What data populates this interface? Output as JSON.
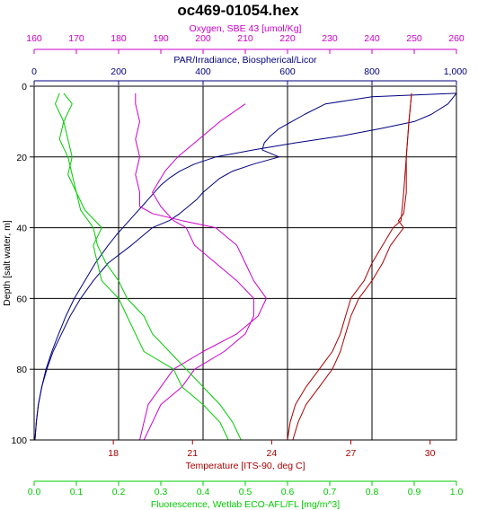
{
  "chart_data": {
    "type": "line",
    "title": "oc469-01054.hex",
    "y_axis": {
      "label": "Depth [salt water, m]",
      "range": [
        100,
        0
      ],
      "ticks": [
        0,
        20,
        40,
        60,
        80,
        100
      ],
      "color": "#000000"
    },
    "top_axes": [
      {
        "id": "oxygen",
        "label": "Oxygen, SBE 43 [umol/Kg]",
        "range": [
          160,
          260
        ],
        "ticks": [
          160,
          170,
          180,
          190,
          200,
          210,
          220,
          230,
          240,
          250,
          260
        ],
        "color": "#cc00cc"
      },
      {
        "id": "par",
        "label": "PAR/Irradiance, Biospherical/Licor",
        "range": [
          0,
          1000
        ],
        "ticks": [
          0,
          200,
          400,
          600,
          800
        ],
        "tick_labels": [
          "0",
          "200",
          "400",
          "600",
          "800",
          "1,000"
        ],
        "tick_values": [
          0,
          200,
          400,
          600,
          800,
          1000
        ],
        "color": "#000080"
      }
    ],
    "bottom_axes": [
      {
        "id": "temperature",
        "label": "Temperature [ITS-90, deg C]",
        "range": [
          15,
          31
        ],
        "ticks": [
          18,
          21,
          24,
          27,
          30
        ],
        "color": "#aa0000"
      },
      {
        "id": "fluorescence",
        "label": "Fluorescence, Wetlab ECO-AFL/FL [mg/m^3]",
        "range": [
          0,
          1.0
        ],
        "ticks": [
          0.0,
          0.1,
          0.2,
          0.3,
          0.4,
          0.5,
          0.6,
          0.7,
          0.8,
          0.9,
          1.0
        ],
        "tick_labels": [
          "0.0",
          "0.1",
          "0.2",
          "0.3",
          "0.4",
          "0.5",
          "0.6",
          "0.7",
          "0.8",
          "0.9",
          "1.0"
        ],
        "color": "#00cc00"
      }
    ],
    "grid": true,
    "series": [
      {
        "axis": "par",
        "color": "#000080",
        "depth": [
          2,
          3,
          5,
          8,
          10,
          12,
          14,
          16,
          18,
          20,
          22,
          24,
          26,
          28,
          30,
          32,
          34,
          36,
          38,
          40,
          45,
          50,
          55,
          60,
          65,
          70,
          75,
          80,
          85,
          90,
          95,
          100
        ],
        "x": [
          1000,
          800,
          690,
          640,
          610,
          580,
          560,
          545,
          540,
          580,
          520,
          470,
          440,
          420,
          400,
          385,
          365,
          345,
          320,
          280,
          230,
          175,
          140,
          110,
          85,
          65,
          45,
          30,
          18,
          10,
          5,
          2
        ]
      },
      {
        "axis": "par",
        "color": "#000080",
        "depth": [
          2,
          5,
          8,
          10,
          12,
          14,
          16,
          18,
          20,
          22,
          24,
          26,
          28,
          30,
          32,
          34,
          36,
          38,
          40,
          42,
          45,
          50,
          55,
          60,
          65,
          70,
          75,
          80,
          85,
          90,
          95,
          100
        ],
        "x": [
          1000,
          980,
          940,
          900,
          820,
          730,
          620,
          520,
          430,
          380,
          345,
          320,
          300,
          285,
          270,
          255,
          240,
          225,
          210,
          195,
          175,
          145,
          120,
          95,
          75,
          58,
          42,
          28,
          18,
          10,
          5,
          2
        ]
      },
      {
        "axis": "temperature",
        "color": "#aa0000",
        "depth": [
          2,
          10,
          20,
          30,
          36,
          38,
          40,
          45,
          50,
          55,
          60,
          65,
          70,
          75,
          80,
          85,
          90,
          95,
          100
        ],
        "x": [
          29.3,
          29.2,
          29.1,
          29.1,
          29.0,
          28.8,
          29.0,
          28.5,
          28.2,
          27.8,
          27.3,
          27.0,
          26.8,
          26.6,
          26.3,
          25.8,
          25.3,
          25.0,
          24.8
        ]
      },
      {
        "axis": "temperature",
        "color": "#aa0000",
        "depth": [
          2,
          10,
          20,
          30,
          38,
          40,
          45,
          50,
          55,
          60,
          65,
          70,
          75,
          78,
          80,
          85,
          90,
          95,
          100
        ],
        "x": [
          29.3,
          29.2,
          29.1,
          29.0,
          28.9,
          28.6,
          28.2,
          27.8,
          27.5,
          27.0,
          26.8,
          26.6,
          26.3,
          26.0,
          25.8,
          25.3,
          24.9,
          24.7,
          24.6
        ]
      },
      {
        "axis": "oxygen",
        "color": "#cc00cc",
        "depth": [
          2,
          5,
          10,
          15,
          20,
          25,
          30,
          34,
          36,
          38,
          40,
          45,
          50,
          55,
          60,
          65,
          70,
          75,
          80,
          85,
          90,
          95,
          100
        ],
        "x": [
          184,
          184,
          185,
          184,
          185,
          184,
          185,
          185,
          188,
          195,
          203,
          208,
          210,
          212,
          215,
          213,
          208,
          200,
          193,
          190,
          187,
          186,
          185
        ]
      },
      {
        "axis": "oxygen",
        "color": "#cc00cc",
        "depth": [
          5,
          10,
          15,
          18,
          20,
          24,
          28,
          30,
          34,
          38,
          40,
          45,
          50,
          55,
          60,
          65,
          70,
          75,
          80,
          85,
          90,
          95,
          100
        ],
        "x": [
          210,
          204,
          199,
          196,
          194,
          191,
          189,
          188,
          190,
          193,
          196,
          198,
          203,
          208,
          212,
          212,
          210,
          205,
          198,
          195,
          190,
          188,
          186
        ]
      },
      {
        "axis": "fluorescence",
        "color": "#00cc00",
        "depth": [
          2,
          5,
          10,
          15,
          20,
          25,
          30,
          35,
          40,
          45,
          50,
          55,
          60,
          65,
          70,
          75,
          80,
          85,
          90,
          95,
          100
        ],
        "x": [
          0.07,
          0.09,
          0.07,
          0.08,
          0.09,
          0.08,
          0.1,
          0.11,
          0.14,
          0.15,
          0.17,
          0.2,
          0.22,
          0.26,
          0.28,
          0.32,
          0.36,
          0.4,
          0.44,
          0.47,
          0.49
        ]
      },
      {
        "axis": "fluorescence",
        "color": "#00cc00",
        "depth": [
          2,
          5,
          10,
          15,
          20,
          25,
          30,
          35,
          40,
          45,
          50,
          55,
          60,
          65,
          70,
          75,
          80,
          85,
          90,
          95,
          100
        ],
        "x": [
          0.06,
          0.05,
          0.07,
          0.06,
          0.08,
          0.09,
          0.1,
          0.12,
          0.16,
          0.14,
          0.15,
          0.16,
          0.2,
          0.22,
          0.24,
          0.26,
          0.33,
          0.35,
          0.4,
          0.44,
          0.46
        ]
      }
    ]
  }
}
